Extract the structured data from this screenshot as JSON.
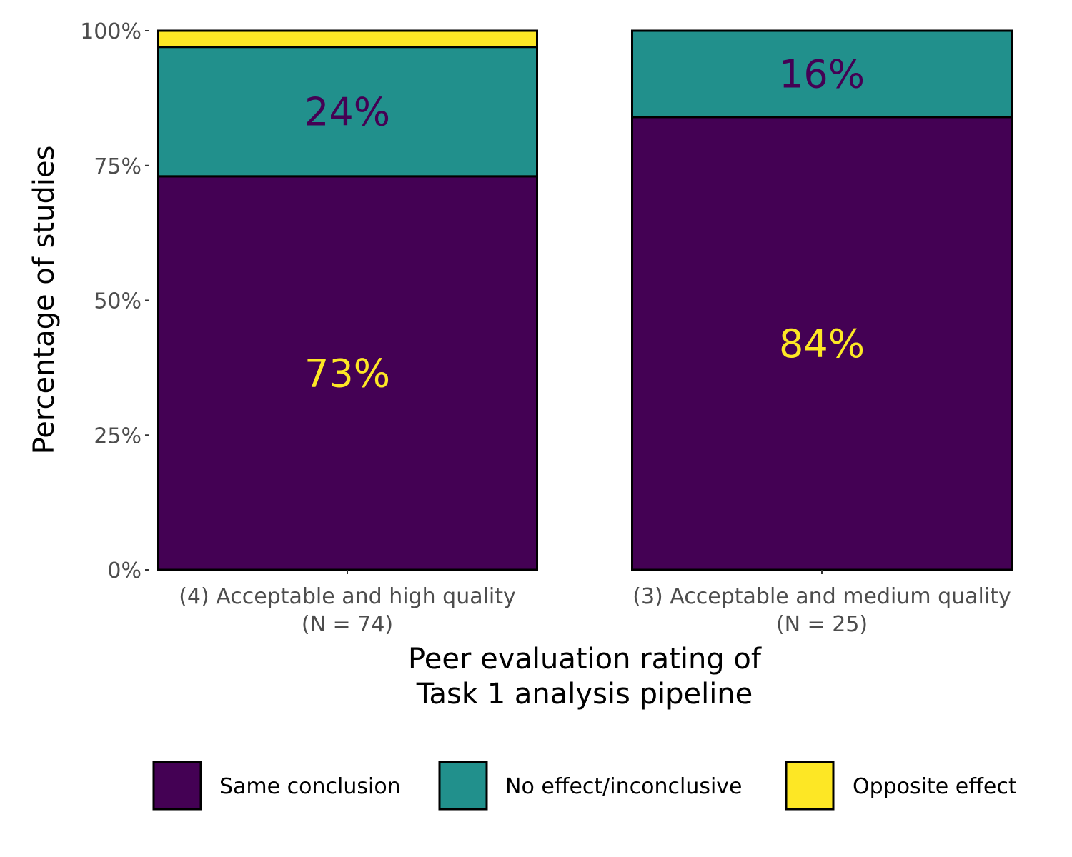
{
  "chart_data": {
    "type": "bar",
    "stacked": true,
    "categories": [
      "(4) Acceptable and high quality\n(N = 74)",
      "(3) Acceptable and medium quality\n(N = 25)"
    ],
    "series": [
      {
        "name": "Same conclusion",
        "color": "#440154",
        "values": [
          73,
          84
        ],
        "labels": [
          "73%",
          "84%"
        ],
        "label_color": "#FDE725"
      },
      {
        "name": "No effect/inconclusive",
        "color": "#21908C",
        "values": [
          24,
          16
        ],
        "labels": [
          "24%",
          "16%"
        ],
        "label_color": "#440154"
      },
      {
        "name": "Opposite effect",
        "color": "#FDE725",
        "values": [
          3,
          0
        ],
        "labels": [
          "",
          ""
        ],
        "label_color": "#440154"
      }
    ],
    "xlabel": "Peer evaluation rating of\nTask 1 analysis pipeline",
    "ylabel": "Percentage of studies",
    "ylim": [
      0,
      100
    ],
    "yticks": [
      {
        "value": 0,
        "label": "0%"
      },
      {
        "value": 25,
        "label": "25%"
      },
      {
        "value": 50,
        "label": "50%"
      },
      {
        "value": 75,
        "label": "75%"
      },
      {
        "value": 100,
        "label": "100%"
      }
    ],
    "grid": false,
    "legend_position": "bottom"
  }
}
